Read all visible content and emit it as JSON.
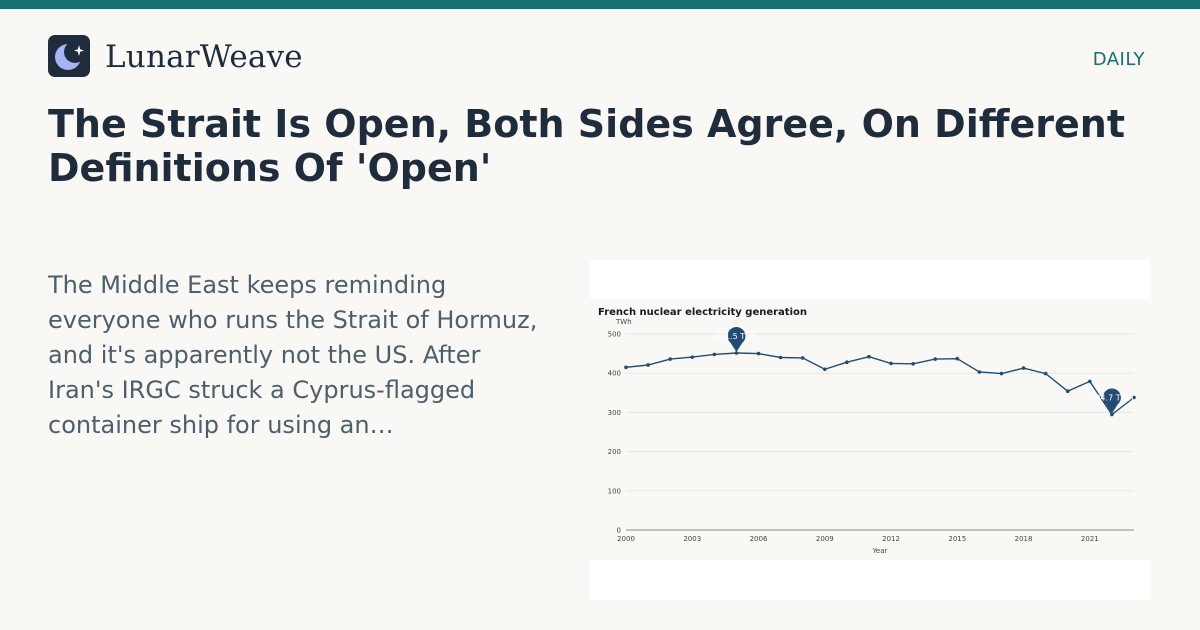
{
  "brand": {
    "name": "LunarWeave",
    "logo_icon": "crescent-moon-star-icon"
  },
  "section": "DAILY",
  "headline": "The Strait Is Open, Both Sides Agree, On Different Definitions Of 'Open'",
  "summary": "The Middle East keeps reminding everyone who runs the Strait of Hormuz, and it's apparently not the US. After Iran's IRGC struck a Cyprus-flagged container ship for using an…",
  "colors": {
    "accent": "#17706f",
    "ink": "#1e2c3c",
    "series": "#214d75"
  },
  "chart_data": {
    "type": "line",
    "title": "French nuclear electricity generation",
    "ylabel": "TWh",
    "xlabel": "Year",
    "ylim": [
      0,
      500
    ],
    "yticks": [
      "0",
      "100",
      "200",
      "300",
      "400",
      "500"
    ],
    "xticks": [
      "2000",
      "2003",
      "2006",
      "2009",
      "2012",
      "2015",
      "2018",
      "2021"
    ],
    "grid": true,
    "series": [
      {
        "x": [
          2000,
          2001,
          2002,
          2003,
          2004,
          2005,
          2006,
          2007,
          2008,
          2009,
          2010,
          2011,
          2012,
          2013,
          2014,
          2015,
          2016,
          2017,
          2018,
          2019,
          2020,
          2021,
          2022,
          2023
        ],
        "values": [
          415,
          421,
          436,
          441,
          448,
          451.5,
          450,
          440,
          439,
          410,
          428,
          442,
          425,
          424,
          436,
          437,
          403,
          399,
          413,
          399,
          354,
          379,
          294.7,
          338
        ]
      }
    ],
    "annotations": [
      {
        "x": 2005,
        "y": 451.5,
        "label": "451.5 TWh"
      },
      {
        "x": 2022,
        "y": 294.7,
        "label": "294.7 TWh"
      }
    ]
  }
}
